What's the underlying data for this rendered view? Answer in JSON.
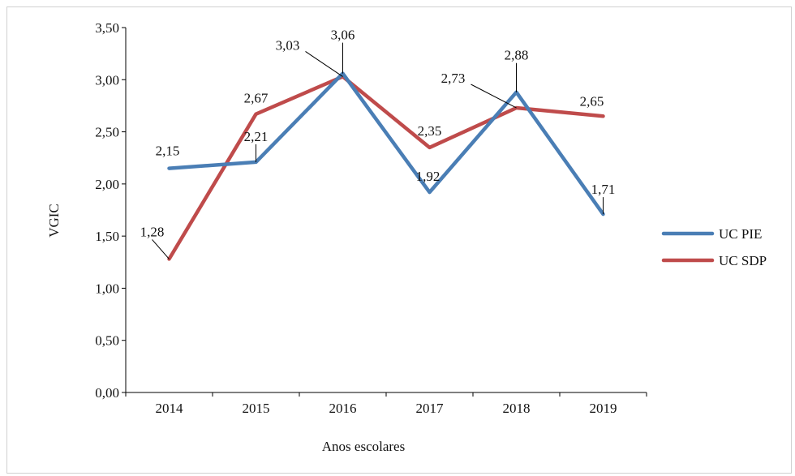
{
  "chart_data": {
    "type": "line",
    "title": "",
    "xlabel": "Anos escolares",
    "ylabel": "VGIC",
    "categories": [
      "2014",
      "2015",
      "2016",
      "2017",
      "2018",
      "2019"
    ],
    "series": [
      {
        "name": "UC PIE",
        "color": "#4a7eb5",
        "values": [
          2.15,
          2.21,
          3.06,
          1.92,
          2.88,
          1.71
        ],
        "labels": [
          "2,15",
          "2,21",
          "3,06",
          "1,92",
          "2,88",
          "1,71"
        ]
      },
      {
        "name": "UC SDP",
        "color": "#bf4b4b",
        "values": [
          1.28,
          2.67,
          3.03,
          2.35,
          2.73,
          2.65
        ],
        "labels": [
          "1,28",
          "2,67",
          "3,03",
          "2,35",
          "2,73",
          "2,65"
        ]
      }
    ],
    "ylim": [
      0,
      3.5
    ],
    "yticks": [
      0,
      0.5,
      1,
      1.5,
      2,
      2.5,
      3,
      3.5
    ],
    "ytick_labels": [
      "0,00",
      "0,50",
      "1,00",
      "1,50",
      "2,00",
      "2,50",
      "3,00",
      "3,50"
    ],
    "grid": false,
    "legend_position": "right"
  }
}
